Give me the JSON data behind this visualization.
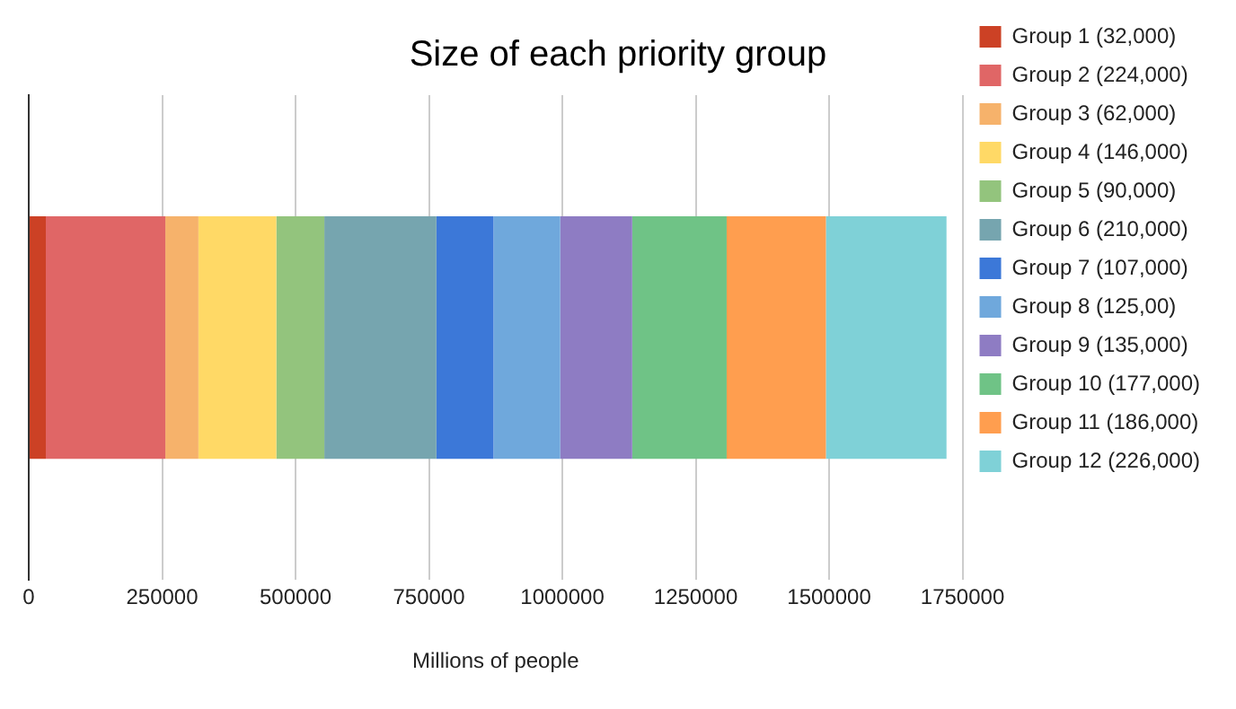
{
  "chart_data": {
    "type": "bar",
    "orientation": "horizontal",
    "stacked": true,
    "title": "Size of each priority group",
    "xlabel": "Millions of people",
    "categories": [
      null
    ],
    "series": [
      {
        "name": "Group 1 (32,000)",
        "color": "#cc4125",
        "values": [
          32000
        ]
      },
      {
        "name": "Group 2 (224,000)",
        "color": "#e06666",
        "values": [
          224000
        ]
      },
      {
        "name": "Group 3 (62,000)",
        "color": "#f6b26b",
        "values": [
          62000
        ]
      },
      {
        "name": "Group 4 (146,000)",
        "color": "#ffd966",
        "values": [
          146000
        ]
      },
      {
        "name": "Group 5 (90,000)",
        "color": "#93c47d",
        "values": [
          90000
        ]
      },
      {
        "name": "Group 6 (210,000)",
        "color": "#76a5af",
        "values": [
          210000
        ]
      },
      {
        "name": "Group 7 (107,000)",
        "color": "#3c78d8",
        "values": [
          107000
        ]
      },
      {
        "name": "Group 8 (125,00)",
        "color": "#6fa8dc",
        "values": [
          125000
        ]
      },
      {
        "name": "Group 9 (135,000)",
        "color": "#8e7cc3",
        "values": [
          135000
        ]
      },
      {
        "name": "Group 10 (177,000)",
        "color": "#6fc386",
        "values": [
          177000
        ]
      },
      {
        "name": "Group 11 (186,000)",
        "color": "#ff9e4f",
        "values": [
          186000
        ]
      },
      {
        "name": "Group 12 (226,000)",
        "color": "#7fd1d7",
        "values": [
          226000
        ]
      }
    ],
    "xlim": [
      0,
      1750000
    ],
    "xticks": [
      0,
      250000,
      500000,
      750000,
      1000000,
      1250000,
      1500000,
      1750000
    ],
    "grid": "x",
    "legend": "right"
  }
}
